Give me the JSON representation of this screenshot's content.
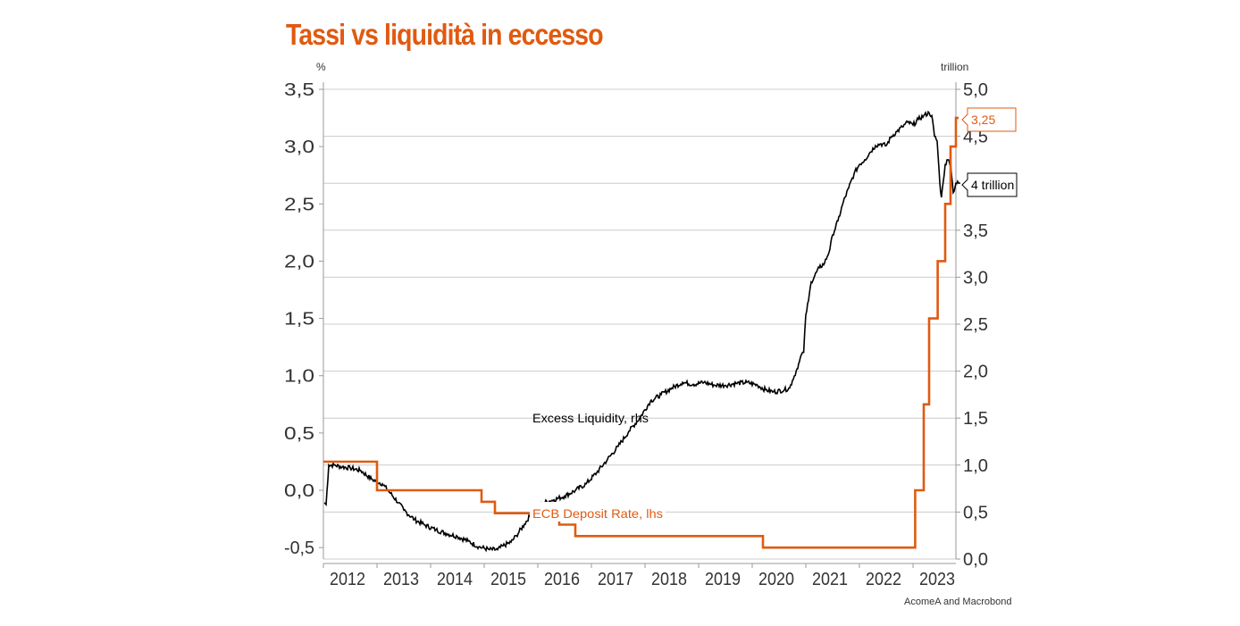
{
  "title": "Tassi vs liquidità in eccesso",
  "source": "AcomeA and Macrobond",
  "colors": {
    "title": "#E05A10",
    "rate": "#E05A10",
    "liquidity": "#000000",
    "grid": "#cccccc"
  },
  "chart_data": {
    "type": "line",
    "title": "Tassi vs liquidità in eccesso",
    "left_axis": {
      "unit": "%",
      "ylim": [
        -0.6,
        3.5
      ],
      "ticks": [
        "3,5",
        "3,0",
        "2,5",
        "2,0",
        "1,5",
        "1,0",
        "0,5",
        "0,0",
        "-0,5"
      ],
      "tick_values": [
        3.5,
        3.0,
        2.5,
        2.0,
        1.5,
        1.0,
        0.5,
        0.0,
        -0.5
      ]
    },
    "right_axis": {
      "unit": "trillion",
      "ylim": [
        0,
        5.0
      ],
      "ticks": [
        "5,0",
        "4,5",
        "4,0",
        "3,5",
        "3,0",
        "2,5",
        "2,0",
        "1,5",
        "1,0",
        "0,5",
        "0,0"
      ],
      "tick_values": [
        5.0,
        4.5,
        4.0,
        3.5,
        3.0,
        2.5,
        2.0,
        1.5,
        1.0,
        0.5,
        0.0
      ]
    },
    "x_axis": {
      "xlim": [
        2011.5,
        2023.3
      ],
      "ticks": [
        "2012",
        "2013",
        "2014",
        "2015",
        "2016",
        "2017",
        "2018",
        "2019",
        "2020",
        "2021",
        "2022",
        "2023"
      ],
      "tick_values": [
        2012,
        2013,
        2014,
        2015,
        2016,
        2017,
        2018,
        2019,
        2020,
        2021,
        2022,
        2023
      ]
    },
    "grid": true,
    "series": [
      {
        "name": "ECB Deposit Rate, lhs",
        "axis": "left",
        "style": "step",
        "last_label": "3,25",
        "points": [
          [
            2011.5,
            0.25
          ],
          [
            2012.5,
            0.25
          ],
          [
            2012.5,
            0.0
          ],
          [
            2014.45,
            0.0
          ],
          [
            2014.45,
            -0.1
          ],
          [
            2014.7,
            -0.1
          ],
          [
            2014.7,
            -0.2
          ],
          [
            2015.9,
            -0.2
          ],
          [
            2015.9,
            -0.3
          ],
          [
            2016.2,
            -0.3
          ],
          [
            2016.2,
            -0.4
          ],
          [
            2019.7,
            -0.4
          ],
          [
            2019.7,
            -0.5
          ],
          [
            2022.54,
            -0.5
          ],
          [
            2022.54,
            0.0
          ],
          [
            2022.7,
            0.0
          ],
          [
            2022.7,
            0.75
          ],
          [
            2022.8,
            0.75
          ],
          [
            2022.8,
            1.5
          ],
          [
            2022.96,
            1.5
          ],
          [
            2022.96,
            2.0
          ],
          [
            2023.1,
            2.0
          ],
          [
            2023.1,
            2.5
          ],
          [
            2023.2,
            2.5
          ],
          [
            2023.2,
            3.0
          ],
          [
            2023.3,
            3.0
          ],
          [
            2023.3,
            3.25
          ],
          [
            2023.35,
            3.25
          ]
        ]
      },
      {
        "name": "Excess Liquidity, rhs",
        "axis": "right",
        "style": "line",
        "last_label": "4 trillion",
        "points": [
          [
            2011.52,
            0.6
          ],
          [
            2011.55,
            0.58
          ],
          [
            2011.6,
            1.0
          ],
          [
            2011.7,
            1.0
          ],
          [
            2011.85,
            0.98
          ],
          [
            2012.0,
            0.97
          ],
          [
            2012.2,
            0.94
          ],
          [
            2012.4,
            0.85
          ],
          [
            2012.6,
            0.8
          ],
          [
            2012.75,
            0.7
          ],
          [
            2012.9,
            0.6
          ],
          [
            2013.0,
            0.52
          ],
          [
            2013.2,
            0.42
          ],
          [
            2013.4,
            0.36
          ],
          [
            2013.6,
            0.31
          ],
          [
            2013.8,
            0.27
          ],
          [
            2014.0,
            0.24
          ],
          [
            2014.2,
            0.19
          ],
          [
            2014.4,
            0.13
          ],
          [
            2014.6,
            0.1
          ],
          [
            2014.75,
            0.1
          ],
          [
            2014.85,
            0.14
          ],
          [
            2015.0,
            0.18
          ],
          [
            2015.1,
            0.25
          ],
          [
            2015.25,
            0.37
          ],
          [
            2015.4,
            0.5
          ],
          [
            2015.5,
            0.53
          ],
          [
            2015.6,
            0.6
          ],
          [
            2015.8,
            0.63
          ],
          [
            2016.0,
            0.67
          ],
          [
            2016.2,
            0.73
          ],
          [
            2016.4,
            0.8
          ],
          [
            2016.6,
            0.92
          ],
          [
            2016.8,
            1.06
          ],
          [
            2017.0,
            1.2
          ],
          [
            2017.2,
            1.36
          ],
          [
            2017.4,
            1.5
          ],
          [
            2017.6,
            1.68
          ],
          [
            2017.8,
            1.75
          ],
          [
            2018.0,
            1.82
          ],
          [
            2018.2,
            1.88
          ],
          [
            2018.4,
            1.86
          ],
          [
            2018.6,
            1.88
          ],
          [
            2018.8,
            1.85
          ],
          [
            2019.0,
            1.85
          ],
          [
            2019.2,
            1.87
          ],
          [
            2019.4,
            1.88
          ],
          [
            2019.6,
            1.85
          ],
          [
            2019.75,
            1.8
          ],
          [
            2019.9,
            1.78
          ],
          [
            2020.1,
            1.8
          ],
          [
            2020.2,
            1.82
          ],
          [
            2020.25,
            1.9
          ],
          [
            2020.32,
            2.0
          ],
          [
            2020.38,
            2.1
          ],
          [
            2020.42,
            2.18
          ],
          [
            2020.46,
            2.2
          ],
          [
            2020.5,
            2.6
          ],
          [
            2020.55,
            2.75
          ],
          [
            2020.6,
            2.95
          ],
          [
            2020.75,
            3.1
          ],
          [
            2020.85,
            3.15
          ],
          [
            2020.95,
            3.3
          ],
          [
            2021.0,
            3.45
          ],
          [
            2021.1,
            3.6
          ],
          [
            2021.2,
            3.8
          ],
          [
            2021.3,
            3.95
          ],
          [
            2021.4,
            4.1
          ],
          [
            2021.5,
            4.2
          ],
          [
            2021.6,
            4.25
          ],
          [
            2021.7,
            4.33
          ],
          [
            2021.8,
            4.4
          ],
          [
            2021.9,
            4.42
          ],
          [
            2022.0,
            4.4
          ],
          [
            2022.1,
            4.5
          ],
          [
            2022.2,
            4.55
          ],
          [
            2022.3,
            4.6
          ],
          [
            2022.4,
            4.65
          ],
          [
            2022.5,
            4.62
          ],
          [
            2022.6,
            4.68
          ],
          [
            2022.7,
            4.72
          ],
          [
            2022.8,
            4.75
          ],
          [
            2022.85,
            4.72
          ],
          [
            2022.9,
            4.5
          ],
          [
            2022.95,
            4.45
          ],
          [
            2023.0,
            4.0
          ],
          [
            2023.03,
            3.85
          ],
          [
            2023.06,
            4.0
          ],
          [
            2023.1,
            4.2
          ],
          [
            2023.15,
            4.25
          ],
          [
            2023.2,
            4.22
          ],
          [
            2023.25,
            3.9
          ],
          [
            2023.3,
            4.0
          ],
          [
            2023.38,
            4.0
          ]
        ]
      }
    ]
  }
}
